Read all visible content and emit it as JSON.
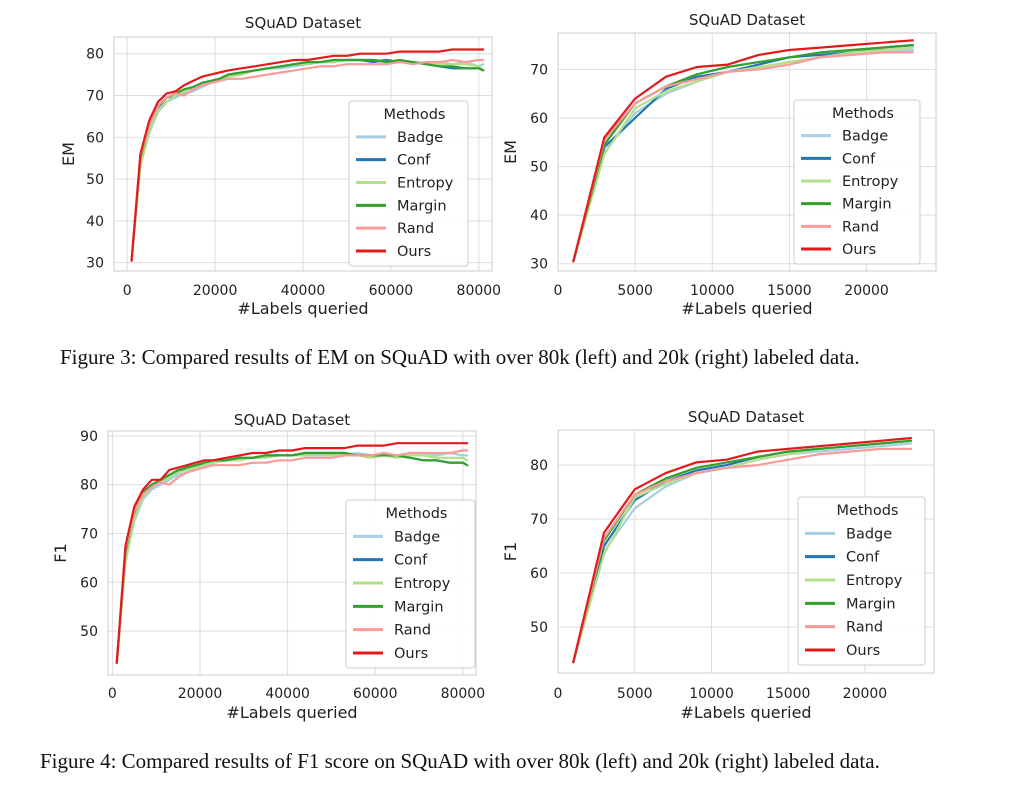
{
  "captions": {
    "fig3": "Figure 3: Compared results of EM on SQuAD with over 80k (left) and 20k (right) labeled data.",
    "fig4": "Figure 4: Compared results of F1 score on SQuAD with over 80k (left) and 20k (right) labeled data."
  },
  "colors": {
    "Badge": "#a6cee3",
    "Conf": "#1f78b4",
    "Entropy": "#b2df8a",
    "Margin": "#33a02c",
    "Rand": "#fb9a99",
    "Ours": "#e31a1c",
    "grid": "#dddddd",
    "frame": "#cccccc"
  },
  "chart_data": [
    {
      "type": "line",
      "title": "SQuAD Dataset",
      "xlabel": "#Labels queried",
      "ylabel": "EM",
      "xlim": [
        -3000,
        83000
      ],
      "ylim": [
        28,
        84
      ],
      "xticks": [
        0,
        20000,
        40000,
        60000,
        80000
      ],
      "yticks": [
        30,
        40,
        50,
        60,
        70,
        80
      ],
      "grid": true,
      "legend_title": "Methods",
      "legend_placement": "lower-right",
      "x": [
        1000,
        3000,
        5000,
        7000,
        9000,
        11000,
        13000,
        15000,
        17000,
        19000,
        21000,
        23000,
        26000,
        29000,
        32000,
        35000,
        38000,
        41000,
        44000,
        47000,
        50000,
        53000,
        56000,
        59000,
        62000,
        65000,
        68000,
        71000,
        74000,
        77000,
        80000,
        81000
      ],
      "series": [
        {
          "name": "Badge",
          "values": [
            30.5,
            53.5,
            61,
            66,
            68.5,
            69.5,
            70.5,
            71,
            72,
            73,
            73.5,
            74.5,
            75,
            76,
            76.5,
            76.5,
            77,
            77.5,
            78,
            78,
            78.5,
            78.5,
            78.5,
            78.5,
            78,
            78,
            78,
            78,
            77.5,
            78,
            77,
            77.5
          ]
        },
        {
          "name": "Conf",
          "values": [
            30.5,
            55,
            62.5,
            67,
            69.5,
            70,
            71,
            72,
            73,
            73.5,
            74,
            75,
            75.5,
            76,
            76.5,
            77,
            77.5,
            77.5,
            78,
            78.5,
            78.5,
            78.5,
            78,
            78.5,
            78,
            78,
            77.5,
            77,
            76.5,
            76.5,
            76.5,
            76
          ]
        },
        {
          "name": "Entropy",
          "values": [
            30.5,
            53,
            61.5,
            66.5,
            68.5,
            70,
            71,
            72,
            72.5,
            73.5,
            74,
            74.5,
            75,
            76,
            76.5,
            77,
            77.5,
            77.5,
            78,
            78,
            78.5,
            78.5,
            78.5,
            78,
            78,
            78,
            78,
            77.5,
            77.5,
            77.5,
            77,
            76
          ]
        },
        {
          "name": "Margin",
          "values": [
            30.5,
            55,
            63,
            67.5,
            69.5,
            70.5,
            71.5,
            72,
            73,
            73.5,
            74,
            75,
            75.5,
            76,
            76.5,
            77,
            77.5,
            78,
            78,
            78.5,
            78.5,
            78.5,
            78.5,
            78,
            78.5,
            78,
            77.5,
            77,
            77,
            76.5,
            76.5,
            76
          ]
        },
        {
          "name": "Rand",
          "values": [
            30.5,
            55.5,
            63,
            67.5,
            69.5,
            70.5,
            70,
            71.5,
            72.5,
            73,
            73.5,
            74,
            74,
            74.5,
            75,
            75.5,
            76,
            76.5,
            77,
            77,
            77.5,
            77.5,
            77.5,
            77.5,
            78,
            77.5,
            78,
            78,
            78.5,
            78,
            78.5,
            78.5
          ]
        },
        {
          "name": "Ours",
          "values": [
            30.5,
            56,
            64,
            68.5,
            70.5,
            71,
            72.5,
            73.5,
            74.5,
            75,
            75.5,
            76,
            76.5,
            77,
            77.5,
            78,
            78.5,
            78.5,
            79,
            79.5,
            79.5,
            80,
            80,
            80,
            80.5,
            80.5,
            80.5,
            80.5,
            81,
            81,
            81,
            81
          ]
        }
      ]
    },
    {
      "type": "line",
      "title": "SQuAD Dataset",
      "xlabel": "#Labels queried",
      "ylabel": "EM",
      "xlim": [
        0,
        24500
      ],
      "ylim": [
        28.5,
        77.5
      ],
      "xticks": [
        0,
        5000,
        10000,
        15000,
        20000
      ],
      "yticks": [
        30,
        40,
        50,
        60,
        70
      ],
      "grid": true,
      "legend_title": "Methods",
      "legend_placement": "lower-right",
      "x": [
        1000,
        3000,
        5000,
        7000,
        9000,
        11000,
        13000,
        15000,
        17000,
        19000,
        21000,
        23000
      ],
      "series": [
        {
          "name": "Badge",
          "values": [
            30.5,
            53,
            61,
            65,
            67.5,
            69.5,
            70.5,
            71.5,
            72.5,
            73,
            73.5,
            74
          ]
        },
        {
          "name": "Conf",
          "values": [
            30.5,
            54,
            60,
            66,
            68.5,
            69.5,
            71,
            72.5,
            73,
            73.5,
            74.5,
            75
          ]
        },
        {
          "name": "Entropy",
          "values": [
            30.5,
            52.5,
            62,
            65.5,
            67.5,
            69.5,
            70.5,
            71.5,
            72.5,
            73.5,
            74,
            74.5
          ]
        },
        {
          "name": "Margin",
          "values": [
            30.5,
            54.5,
            63,
            66.5,
            69,
            70.5,
            71.5,
            72.5,
            73.5,
            74,
            74.5,
            75
          ]
        },
        {
          "name": "Rand",
          "values": [
            30.5,
            55.5,
            63,
            66.5,
            68,
            69.5,
            70,
            71,
            72.5,
            73,
            73.5,
            73.5
          ]
        },
        {
          "name": "Ours",
          "values": [
            30.5,
            56,
            64,
            68.5,
            70.5,
            71,
            73,
            74,
            74.5,
            75,
            75.5,
            76
          ]
        }
      ]
    },
    {
      "type": "line",
      "title": "SQuAD Dataset",
      "xlabel": "#Labels queried",
      "ylabel": "F1",
      "xlim": [
        -1000,
        83000
      ],
      "ylim": [
        41,
        91
      ],
      "xticks": [
        0,
        20000,
        40000,
        60000,
        80000
      ],
      "yticks": [
        50,
        60,
        70,
        80,
        90
      ],
      "grid": true,
      "legend_title": "Methods",
      "legend_placement": "lower-right",
      "x": [
        1000,
        3000,
        5000,
        7000,
        9000,
        11000,
        13000,
        15000,
        17000,
        19000,
        21000,
        23000,
        26000,
        29000,
        32000,
        35000,
        38000,
        41000,
        44000,
        47000,
        50000,
        53000,
        56000,
        59000,
        62000,
        65000,
        68000,
        71000,
        74000,
        77000,
        80000,
        81000
      ],
      "series": [
        {
          "name": "Badge",
          "values": [
            43.5,
            64.5,
            72.5,
            77,
            79,
            80,
            81,
            82,
            82.5,
            83.5,
            84,
            84.5,
            85,
            85,
            85.5,
            85.5,
            86,
            86,
            86,
            86,
            86,
            86,
            86.5,
            86,
            86,
            86,
            86.5,
            86.5,
            86,
            86.5,
            86,
            86
          ]
        },
        {
          "name": "Conf",
          "values": [
            43.5,
            66,
            74,
            78,
            80,
            81,
            82,
            82.5,
            83.5,
            84,
            84,
            84.5,
            85,
            85.5,
            85.5,
            86,
            86,
            86,
            86.5,
            86.5,
            86.5,
            86.5,
            86,
            86,
            86,
            86,
            85.5,
            85,
            85,
            84.5,
            84.5,
            84
          ]
        },
        {
          "name": "Entropy",
          "values": [
            43.5,
            64,
            73,
            77.5,
            79.5,
            80.5,
            81.5,
            82.5,
            83,
            83.5,
            84,
            84.5,
            85,
            85,
            85.5,
            85.5,
            86,
            86,
            86,
            86.5,
            86,
            86,
            86,
            85.5,
            86,
            85.5,
            86,
            86,
            85.5,
            85.5,
            85.5,
            85
          ]
        },
        {
          "name": "Margin",
          "values": [
            43.5,
            66.5,
            74.5,
            78.5,
            80,
            81,
            82,
            83,
            83.5,
            84,
            84.5,
            85,
            85,
            85.5,
            85.5,
            86,
            86,
            86,
            86.5,
            86.5,
            86.5,
            86.5,
            86,
            86,
            86,
            86,
            85.5,
            85,
            85,
            84.5,
            84.5,
            84
          ]
        },
        {
          "name": "Rand",
          "values": [
            43.5,
            67,
            74.5,
            78,
            79.5,
            80.5,
            80,
            81.5,
            82.5,
            83,
            83.5,
            84,
            84,
            84,
            84.5,
            84.5,
            85,
            85,
            85.5,
            85.5,
            85.5,
            86,
            86,
            86,
            86.5,
            86,
            86.5,
            86.5,
            86.5,
            86.5,
            87,
            87
          ]
        },
        {
          "name": "Ours",
          "values": [
            43.5,
            67.5,
            75.5,
            79,
            81,
            81,
            83,
            83.5,
            84,
            84.5,
            85,
            85,
            85.5,
            86,
            86.5,
            86.5,
            87,
            87,
            87.5,
            87.5,
            87.5,
            87.5,
            88,
            88,
            88,
            88.5,
            88.5,
            88.5,
            88.5,
            88.5,
            88.5,
            88.5
          ]
        }
      ]
    },
    {
      "type": "line",
      "title": "SQuAD Dataset",
      "xlabel": "#Labels queried",
      "ylabel": "F1",
      "xlim": [
        0,
        24500
      ],
      "ylim": [
        41.5,
        86.5
      ],
      "xticks": [
        0,
        5000,
        10000,
        15000,
        20000
      ],
      "yticks": [
        50,
        60,
        70,
        80
      ],
      "grid": true,
      "legend_title": "Methods",
      "legend_placement": "lower-right",
      "x": [
        1000,
        3000,
        5000,
        7000,
        9000,
        11000,
        13000,
        15000,
        17000,
        19000,
        21000,
        23000
      ],
      "series": [
        {
          "name": "Badge",
          "values": [
            43.5,
            64,
            72,
            76,
            78.5,
            79.5,
            81,
            82,
            82.5,
            83,
            83.5,
            84
          ]
        },
        {
          "name": "Conf",
          "values": [
            43.5,
            65,
            73.5,
            77,
            79,
            80,
            81.5,
            82.5,
            83,
            83.5,
            84,
            84.5
          ]
        },
        {
          "name": "Entropy",
          "values": [
            43.5,
            63.5,
            74,
            76.5,
            78.5,
            79.5,
            81,
            82,
            83,
            83.5,
            84,
            84.5
          ]
        },
        {
          "name": "Margin",
          "values": [
            43.5,
            66,
            74.5,
            77.5,
            79.5,
            80.5,
            81.5,
            82.5,
            83,
            83.5,
            84,
            84.5
          ]
        },
        {
          "name": "Rand",
          "values": [
            43.5,
            66.5,
            74.5,
            77,
            78.5,
            79.5,
            80,
            81,
            82,
            82.5,
            83,
            83
          ]
        },
        {
          "name": "Ours",
          "values": [
            43.5,
            67.5,
            75.5,
            78.5,
            80.5,
            81,
            82.5,
            83,
            83.5,
            84,
            84.5,
            85
          ]
        }
      ]
    }
  ]
}
